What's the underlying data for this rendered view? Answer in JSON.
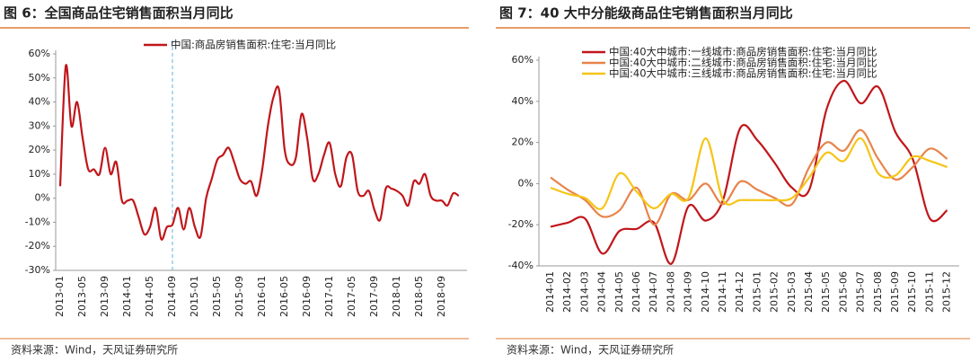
{
  "chart_data": [
    {
      "type": "line",
      "title": "图 6：全国商品住宅销售面积当月同比",
      "source": "资料来源：Wind，天风证券研究所",
      "categories": [
        "2013-01",
        null,
        null,
        null,
        "2013-05",
        null,
        null,
        null,
        "2013-09",
        null,
        null,
        null,
        "2014-01",
        null,
        null,
        null,
        "2014-05",
        null,
        null,
        null,
        "2014-09",
        null,
        null,
        null,
        "2015-01",
        null,
        null,
        null,
        "2015-05",
        null,
        null,
        null,
        "2015-09",
        null,
        null,
        null,
        "2016-01",
        null,
        null,
        null,
        "2016-05",
        null,
        null,
        null,
        "2016-09",
        null,
        null,
        null,
        "2017-01",
        null,
        null,
        null,
        "2017-05",
        null,
        null,
        null,
        "2017-09",
        null,
        null,
        null,
        "2018-01",
        null,
        null,
        null,
        "2018-05",
        null,
        null,
        null,
        "2018-09",
        null,
        null,
        null
      ],
      "series": [
        {
          "name": "中国:商品房销售面积:住宅:当月同比",
          "color": "#c0161b",
          "values": [
            5,
            55,
            30,
            40,
            25,
            12,
            12,
            10,
            21,
            10,
            15,
            -1,
            -1,
            -1,
            -8,
            -15,
            -12,
            -4,
            -17,
            -12,
            -11,
            -4,
            -13,
            -4,
            -12,
            -16,
            0,
            8,
            16,
            18,
            21,
            15,
            8,
            6,
            7,
            1,
            12,
            30,
            42,
            45,
            20,
            14,
            17,
            35,
            25,
            8,
            10,
            18,
            23,
            10,
            5,
            17,
            18,
            3,
            1,
            3,
            -5,
            -9,
            4,
            4,
            3,
            1,
            -3,
            7,
            6,
            10,
            1,
            -1,
            -1,
            -3,
            2,
            1
          ]
        }
      ],
      "marker_x": "2014-09",
      "marker_color": "#5fb4e0",
      "ylim": [
        -30,
        60
      ],
      "yticks": [
        {
          "value": -30,
          "label": "-30%"
        },
        {
          "value": -20,
          "label": "-20%"
        },
        {
          "value": -10,
          "label": "-10%"
        },
        {
          "value": 0,
          "label": "0%"
        },
        {
          "value": 10,
          "label": "10%"
        },
        {
          "value": 20,
          "label": "20%"
        },
        {
          "value": 30,
          "label": "30%"
        },
        {
          "value": 40,
          "label": "40%"
        },
        {
          "value": 50,
          "label": "50%"
        },
        {
          "value": 60,
          "label": "60%"
        }
      ],
      "legend": "top"
    },
    {
      "type": "line",
      "title": "图 7：40 大中分能级商品住宅销售面积当月同比",
      "source": "资料来源：Wind，天风证券研究所",
      "categories": [
        "2014-01",
        "2014-02",
        "2014-03",
        "2014-04",
        "2014-05",
        "2014-06",
        "2014-07",
        "2014-08",
        "2014-09",
        "2014-10",
        "2014-11",
        "2014-12",
        "2015-01",
        "2015-02",
        "2015-03",
        "2015-04",
        "2015-05",
        "2015-06",
        "2015-07",
        "2015-08",
        "2015-09",
        "2015-10",
        "2015-11",
        "2015-12"
      ],
      "series": [
        {
          "name": "中国:40大中城市:一线城市:商品房销售面积:住宅:当月同比",
          "color": "#c0161b",
          "values": [
            -21,
            -19,
            -17,
            -34,
            -23,
            -22,
            -19,
            -39,
            -11,
            -18,
            -8,
            27,
            21,
            10,
            -2,
            -3,
            36,
            50,
            39,
            47,
            25,
            12,
            -17,
            -13
          ]
        },
        {
          "name": "中国:40大中城市:二线城市:商品房销售面积:住宅:当月同比",
          "color": "#e8844a",
          "values": [
            3,
            -3,
            -8,
            -16,
            -13,
            -2,
            -20,
            -5,
            -8,
            0,
            -10,
            1,
            -3,
            -7,
            -10,
            8,
            20,
            16,
            26,
            12,
            2,
            8,
            17,
            12
          ]
        },
        {
          "name": "中国:40大中城市:三线城市:商品房销售面积:住宅:当月同比",
          "color": "#f5c518",
          "values": [
            -2,
            -5,
            -7,
            -12,
            5,
            -4,
            -12,
            -5,
            -7,
            22,
            -8,
            -8,
            -8,
            -8,
            -7,
            3,
            15,
            11,
            22,
            5,
            4,
            13,
            11,
            8
          ]
        }
      ],
      "ylim": [
        -40,
        60
      ],
      "yticks": [
        {
          "value": -40,
          "label": "-40%"
        },
        {
          "value": -20,
          "label": "-20%"
        },
        {
          "value": 0,
          "label": "0%"
        },
        {
          "value": 20,
          "label": "20%"
        },
        {
          "value": 40,
          "label": "40%"
        },
        {
          "value": 60,
          "label": "60%"
        }
      ],
      "legend": "upper left"
    }
  ]
}
